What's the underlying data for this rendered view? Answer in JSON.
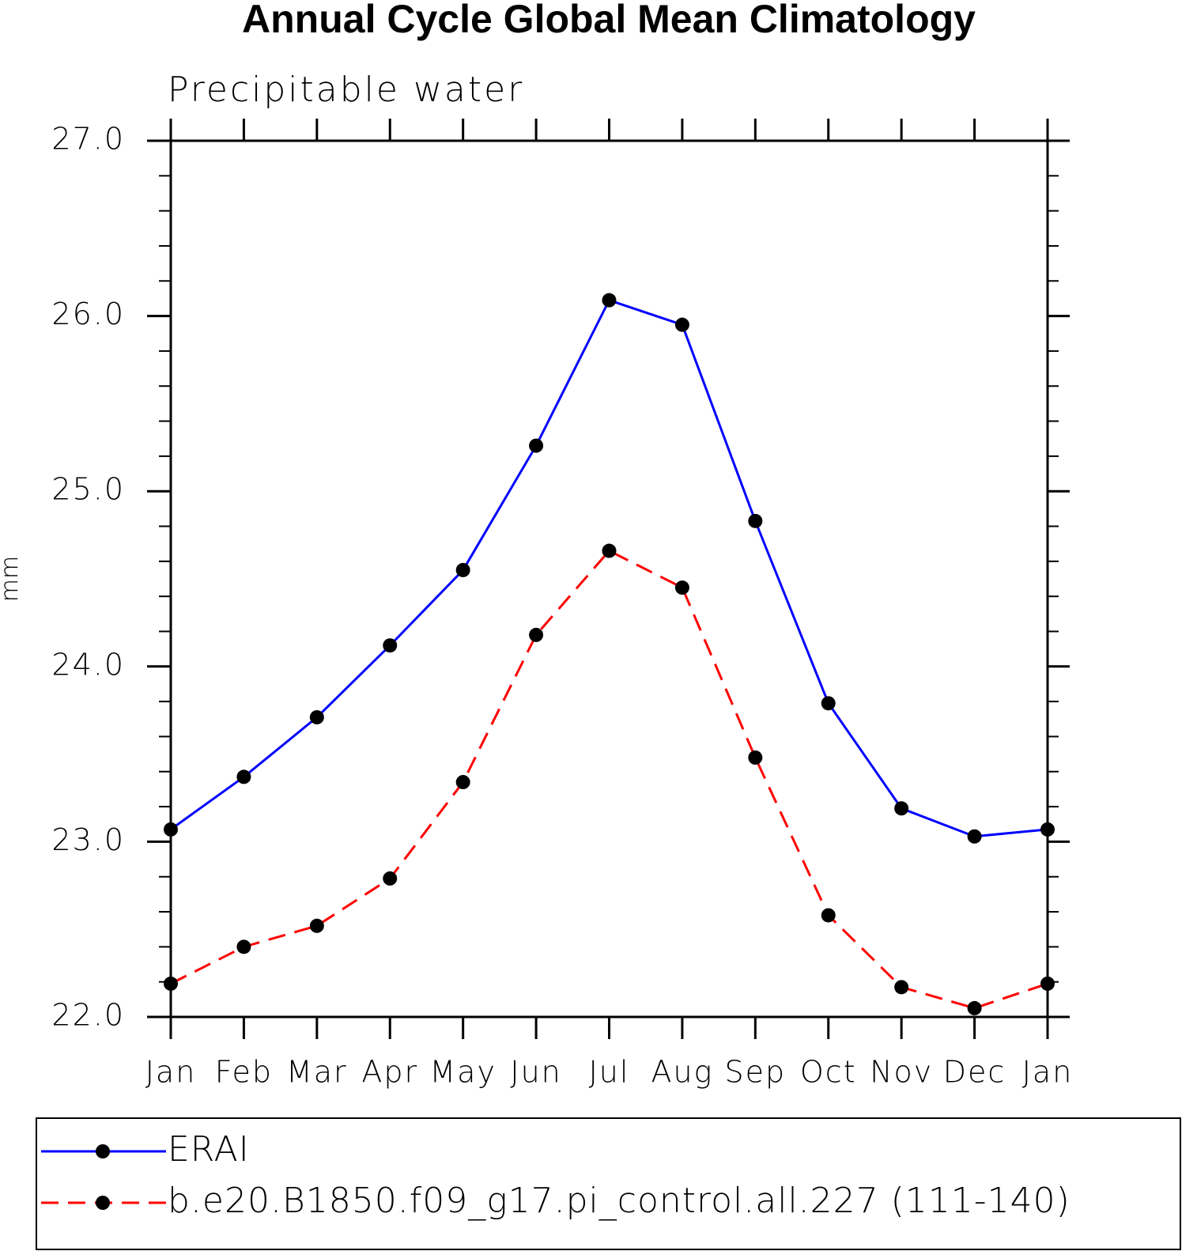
{
  "chart_data": {
    "type": "line",
    "title": "Annual Cycle Global Mean Climatology",
    "subtitle": "Precipitable water",
    "y_label": "mm",
    "categories": [
      "Jan",
      "Feb",
      "Mar",
      "Apr",
      "May",
      "Jun",
      "Jul",
      "Aug",
      "Sep",
      "Oct",
      "Nov",
      "Dec",
      "Jan"
    ],
    "series": [
      {
        "name": "ERAI",
        "color": "#0000ff",
        "line_style": "solid",
        "marker_color": "#000000",
        "values": [
          23.07,
          23.37,
          23.71,
          24.12,
          24.55,
          25.26,
          26.09,
          25.95,
          24.83,
          23.79,
          23.19,
          23.03,
          23.07
        ]
      },
      {
        "name": "b.e20.B1850.f09_g17.pi_control.all.227 (111-140)",
        "color": "#ff0000",
        "line_style": "dashed",
        "marker_color": "#000000",
        "values": [
          22.19,
          22.4,
          22.52,
          22.79,
          23.34,
          24.18,
          24.66,
          24.45,
          23.48,
          22.58,
          22.17,
          22.05,
          22.19
        ]
      }
    ],
    "ylim": [
      22,
      27
    ],
    "yticks": [
      {
        "value": 22,
        "label": "22.0"
      },
      {
        "value": 23,
        "label": "23.0"
      },
      {
        "value": 24,
        "label": "24.0"
      },
      {
        "value": 25,
        "label": "25.0"
      },
      {
        "value": 26,
        "label": "26.0"
      },
      {
        "value": 27,
        "label": "27.0"
      }
    ],
    "yminorticks": [
      22.2,
      22.4,
      22.6,
      22.8,
      23.2,
      23.4,
      23.6,
      23.8,
      24.2,
      24.4,
      24.6,
      24.8,
      25.2,
      25.4,
      25.6,
      25.8,
      26.2,
      26.4,
      26.6,
      26.8
    ],
    "grid": false
  }
}
